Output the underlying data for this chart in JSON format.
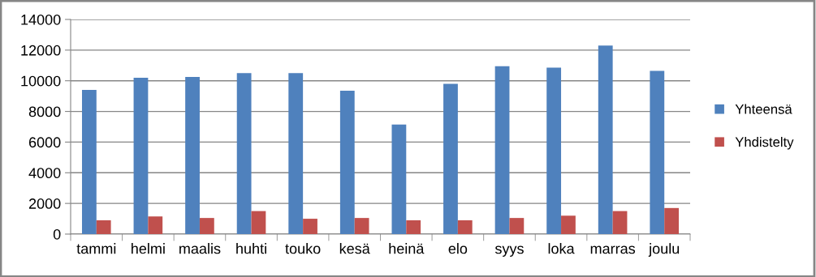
{
  "chart_data": {
    "type": "bar",
    "categories": [
      "tammi",
      "helmi",
      "maalis",
      "huhti",
      "touko",
      "kesä",
      "heinä",
      "elo",
      "syys",
      "loka",
      "marras",
      "joulu"
    ],
    "series": [
      {
        "name": "Yhteensä",
        "color": "#4f81bd",
        "values": [
          9400,
          10200,
          10250,
          10500,
          10500,
          9350,
          7150,
          9800,
          10950,
          10850,
          12300,
          10650
        ]
      },
      {
        "name": "Yhdistelty",
        "color": "#c0504d",
        "values": [
          900,
          1150,
          1050,
          1500,
          1000,
          1050,
          900,
          900,
          1050,
          1200,
          1500,
          1700
        ]
      }
    ],
    "ylim": [
      0,
      14000
    ],
    "yticks": [
      0,
      2000,
      4000,
      6000,
      8000,
      10000,
      12000,
      14000
    ],
    "grid": "y",
    "legend": "right"
  }
}
